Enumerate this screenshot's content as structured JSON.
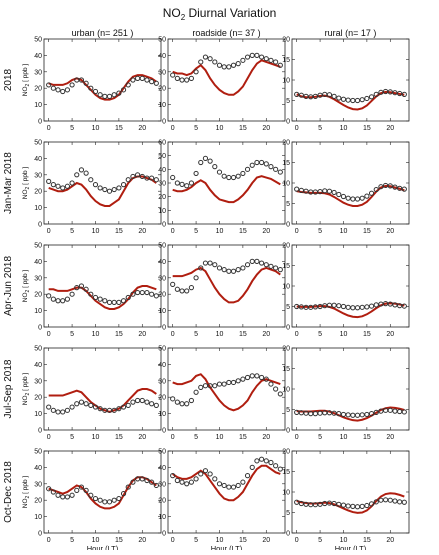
{
  "chart_data": {
    "type": "line",
    "title": "NO",
    "title_subscript": "2",
    "title_rest": " Diurnal Variation",
    "columns": [
      "urban (n= 251 )",
      "roadside (n= 37 )",
      "rural (n= 17 )"
    ],
    "rows": [
      "2018",
      "Jan-Mar 2018",
      "Apr-Jun 2018",
      "Jul-Sep 2018",
      "Oct-Dec 2018"
    ],
    "xlabel": "Hour (LT)",
    "ylabel_main": "NO",
    "ylabel_sub": "2",
    "ylabel_rest": " [ ppb ]",
    "x_ticks": [
      0,
      5,
      10,
      15,
      20
    ],
    "xlim": [
      -1,
      24
    ],
    "grid": false,
    "series_styles": {
      "model": "line",
      "obs": "circles"
    },
    "colors": {
      "model": "#b01e10",
      "obs": "#333333",
      "axes": "#222222"
    },
    "panels": [
      [
        {
          "ylim": [
            0,
            50
          ],
          "yticks": [
            0,
            10,
            20,
            30,
            40,
            50
          ],
          "obs": [
            22,
            20,
            19,
            18,
            19,
            22,
            25,
            25,
            23,
            20,
            18,
            16,
            15,
            15,
            16,
            17,
            19,
            22,
            25,
            26,
            26,
            25,
            24,
            23
          ],
          "model": [
            23,
            22,
            22,
            22,
            23,
            25,
            26,
            25,
            22,
            19,
            16,
            14,
            13,
            13,
            14,
            16,
            20,
            24,
            27,
            28,
            28,
            27,
            26,
            24
          ]
        },
        {
          "ylim": [
            0,
            50
          ],
          "yticks": [
            0,
            10,
            20,
            30,
            40,
            50
          ],
          "obs": [
            28,
            26,
            25,
            25,
            26,
            30,
            36,
            39,
            38,
            36,
            34,
            33,
            33,
            34,
            35,
            37,
            39,
            40,
            40,
            39,
            38,
            37,
            36,
            34
          ],
          "model": [
            30,
            29,
            29,
            28,
            29,
            32,
            34,
            31,
            26,
            22,
            19,
            17,
            16,
            16,
            18,
            21,
            26,
            31,
            35,
            37,
            36,
            35,
            34,
            33
          ]
        },
        {
          "ylim": [
            0,
            20
          ],
          "yticks": [
            0,
            5,
            10,
            15,
            20
          ],
          "obs": [
            6.5,
            6.3,
            6.0,
            5.9,
            6.0,
            6.3,
            6.5,
            6.4,
            6.0,
            5.6,
            5.3,
            5.1,
            5.0,
            5.0,
            5.2,
            5.5,
            5.9,
            6.5,
            7.0,
            7.2,
            7.1,
            6.9,
            6.7,
            6.5
          ],
          "model": [
            6.5,
            6.0,
            5.8,
            5.8,
            5.9,
            6.1,
            6.2,
            5.9,
            5.3,
            4.6,
            3.9,
            3.3,
            2.9,
            2.8,
            3.1,
            3.8,
            4.9,
            6.0,
            6.8,
            7.1,
            7.0,
            6.8,
            6.6,
            6.4
          ]
        }
      ],
      [
        {
          "ylim": [
            0,
            50
          ],
          "yticks": [
            0,
            10,
            20,
            30,
            40,
            50
          ],
          "obs": [
            26,
            24,
            23,
            22,
            23,
            25,
            30,
            33,
            31,
            27,
            24,
            22,
            21,
            20,
            21,
            22,
            24,
            27,
            29,
            30,
            29,
            28,
            28,
            27
          ],
          "model": [
            22,
            21,
            20,
            20,
            21,
            23,
            25,
            24,
            21,
            17,
            14,
            12,
            11,
            11,
            13,
            15,
            20,
            25,
            28,
            29,
            29,
            28,
            27,
            25
          ]
        },
        {
          "ylim": [
            0,
            60
          ],
          "yticks": [
            0,
            10,
            20,
            30,
            40,
            50,
            60
          ],
          "obs": [
            34,
            30,
            29,
            28,
            30,
            37,
            45,
            48,
            46,
            42,
            38,
            35,
            34,
            34,
            35,
            37,
            40,
            43,
            45,
            45,
            44,
            42,
            40,
            38
          ],
          "model": [
            25,
            24,
            24,
            25,
            27,
            30,
            32,
            30,
            25,
            21,
            18,
            17,
            16,
            16,
            18,
            21,
            25,
            30,
            34,
            35,
            34,
            33,
            31,
            29
          ]
        },
        {
          "ylim": [
            0,
            20
          ],
          "yticks": [
            0,
            5,
            10,
            15,
            20
          ],
          "obs": [
            8.5,
            8.2,
            8.0,
            7.8,
            7.8,
            7.9,
            8.1,
            8.0,
            7.7,
            7.2,
            6.7,
            6.3,
            6.1,
            6.1,
            6.3,
            6.8,
            7.5,
            8.4,
            9.1,
            9.4,
            9.3,
            9.0,
            8.7,
            8.5
          ],
          "model": [
            8.0,
            7.8,
            7.7,
            7.6,
            7.6,
            7.6,
            7.5,
            7.2,
            6.6,
            5.9,
            5.2,
            4.7,
            4.4,
            4.4,
            4.7,
            5.4,
            6.6,
            7.9,
            8.9,
            9.3,
            9.2,
            8.9,
            8.6,
            8.2
          ]
        }
      ],
      [
        {
          "ylim": [
            0,
            50
          ],
          "yticks": [
            0,
            10,
            20,
            30,
            40,
            50
          ],
          "obs": [
            19,
            17,
            16,
            16,
            17,
            20,
            24,
            25,
            23,
            20,
            18,
            17,
            16,
            15,
            15,
            15,
            16,
            18,
            20,
            21,
            21,
            21,
            20,
            19
          ],
          "model": [
            23,
            23,
            22,
            22,
            22,
            23,
            24,
            24,
            22,
            19,
            16,
            14,
            12,
            11,
            11,
            12,
            14,
            17,
            21,
            24,
            25,
            25,
            24,
            23
          ]
        },
        {
          "ylim": [
            0,
            50
          ],
          "yticks": [
            0,
            10,
            20,
            30,
            40,
            50
          ],
          "obs": [
            26,
            23,
            22,
            22,
            24,
            30,
            36,
            39,
            39,
            38,
            36,
            35,
            34,
            34,
            35,
            36,
            38,
            40,
            40,
            39,
            38,
            37,
            36,
            35
          ],
          "model": [
            31,
            31,
            31,
            32,
            33,
            35,
            36,
            34,
            29,
            24,
            20,
            17,
            15,
            15,
            16,
            19,
            23,
            28,
            32,
            35,
            36,
            35,
            34,
            32
          ]
        },
        {
          "ylim": [
            0,
            20
          ],
          "yticks": [
            0,
            5,
            10,
            15,
            20
          ],
          "obs": [
            5.0,
            4.9,
            4.8,
            4.8,
            4.9,
            5.0,
            5.2,
            5.3,
            5.3,
            5.2,
            5.0,
            4.8,
            4.7,
            4.7,
            4.8,
            4.9,
            5.1,
            5.4,
            5.6,
            5.7,
            5.6,
            5.4,
            5.2,
            5.1
          ],
          "model": [
            5.0,
            4.9,
            4.9,
            4.9,
            5.0,
            5.1,
            5.1,
            4.9,
            4.5,
            3.9,
            3.3,
            2.8,
            2.5,
            2.4,
            2.6,
            3.1,
            3.8,
            4.6,
            5.3,
            5.7,
            5.8,
            5.7,
            5.5,
            5.2
          ]
        }
      ],
      [
        {
          "ylim": [
            0,
            50
          ],
          "yticks": [
            0,
            10,
            20,
            30,
            40,
            50
          ],
          "obs": [
            14,
            12,
            11,
            11,
            12,
            14,
            16,
            17,
            16,
            15,
            14,
            13,
            12,
            12,
            12,
            13,
            14,
            15,
            17,
            18,
            18,
            17,
            16,
            15
          ],
          "model": [
            21,
            21,
            21,
            21,
            22,
            23,
            24,
            23,
            20,
            17,
            15,
            13,
            12,
            11,
            12,
            13,
            15,
            18,
            21,
            24,
            25,
            25,
            24,
            22
          ]
        },
        {
          "ylim": [
            0,
            50
          ],
          "yticks": [
            0,
            10,
            20,
            30,
            40,
            50
          ],
          "obs": [
            19,
            17,
            16,
            16,
            18,
            23,
            26,
            27,
            27,
            27,
            28,
            28,
            29,
            29,
            30,
            31,
            32,
            33,
            33,
            32,
            31,
            28,
            25,
            22
          ],
          "model": [
            29,
            28,
            28,
            29,
            30,
            33,
            34,
            31,
            26,
            22,
            18,
            15,
            13,
            12,
            13,
            15,
            18,
            23,
            27,
            30,
            31,
            30,
            29,
            28
          ]
        },
        {
          "ylim": [
            0,
            20
          ],
          "yticks": [
            0,
            5,
            10,
            15,
            20
          ],
          "obs": [
            4.3,
            4.2,
            4.1,
            4.0,
            4.0,
            4.1,
            4.2,
            4.2,
            4.1,
            4.0,
            3.8,
            3.7,
            3.6,
            3.6,
            3.7,
            3.8,
            4.0,
            4.3,
            4.6,
            4.8,
            4.8,
            4.6,
            4.5,
            4.4
          ],
          "model": [
            4.6,
            4.5,
            4.5,
            4.5,
            4.6,
            4.7,
            4.7,
            4.5,
            4.1,
            3.6,
            3.1,
            2.7,
            2.4,
            2.3,
            2.5,
            2.9,
            3.5,
            4.2,
            4.9,
            5.3,
            5.5,
            5.4,
            5.2,
            4.9
          ]
        }
      ],
      [
        {
          "ylim": [
            0,
            50
          ],
          "yticks": [
            0,
            10,
            20,
            30,
            40,
            50
          ],
          "obs": [
            27,
            25,
            23,
            22,
            22,
            23,
            26,
            28,
            26,
            23,
            21,
            20,
            19,
            19,
            20,
            21,
            24,
            28,
            31,
            33,
            33,
            32,
            31,
            29
          ],
          "model": [
            27,
            26,
            25,
            24,
            25,
            27,
            29,
            28,
            25,
            21,
            18,
            16,
            15,
            15,
            16,
            18,
            23,
            28,
            32,
            34,
            34,
            33,
            31,
            29
          ]
        },
        {
          "ylim": [
            0,
            50
          ],
          "yticks": [
            0,
            10,
            20,
            30,
            40,
            50
          ],
          "obs": [
            35,
            32,
            31,
            30,
            31,
            33,
            36,
            38,
            36,
            33,
            30,
            29,
            28,
            28,
            29,
            31,
            35,
            40,
            44,
            45,
            44,
            43,
            41,
            39
          ],
          "model": [
            36,
            34,
            33,
            33,
            34,
            36,
            38,
            36,
            32,
            28,
            24,
            21,
            20,
            20,
            22,
            25,
            30,
            35,
            39,
            41,
            41,
            39,
            37,
            36
          ]
        },
        {
          "ylim": [
            0,
            20
          ],
          "yticks": [
            0,
            5,
            10,
            15,
            20
          ],
          "obs": [
            7.5,
            7.2,
            7.0,
            6.9,
            6.9,
            7.0,
            7.2,
            7.3,
            7.2,
            7.0,
            6.8,
            6.6,
            6.5,
            6.4,
            6.5,
            6.7,
            7.1,
            7.6,
            8.0,
            8.1,
            8.0,
            7.8,
            7.6,
            7.5
          ],
          "model": [
            7.8,
            7.5,
            7.3,
            7.2,
            7.2,
            7.3,
            7.4,
            7.3,
            7.0,
            6.5,
            6.0,
            5.5,
            5.1,
            4.9,
            5.0,
            5.5,
            6.5,
            7.8,
            8.9,
            9.5,
            9.7,
            9.6,
            9.3,
            8.9
          ]
        }
      ]
    ]
  }
}
